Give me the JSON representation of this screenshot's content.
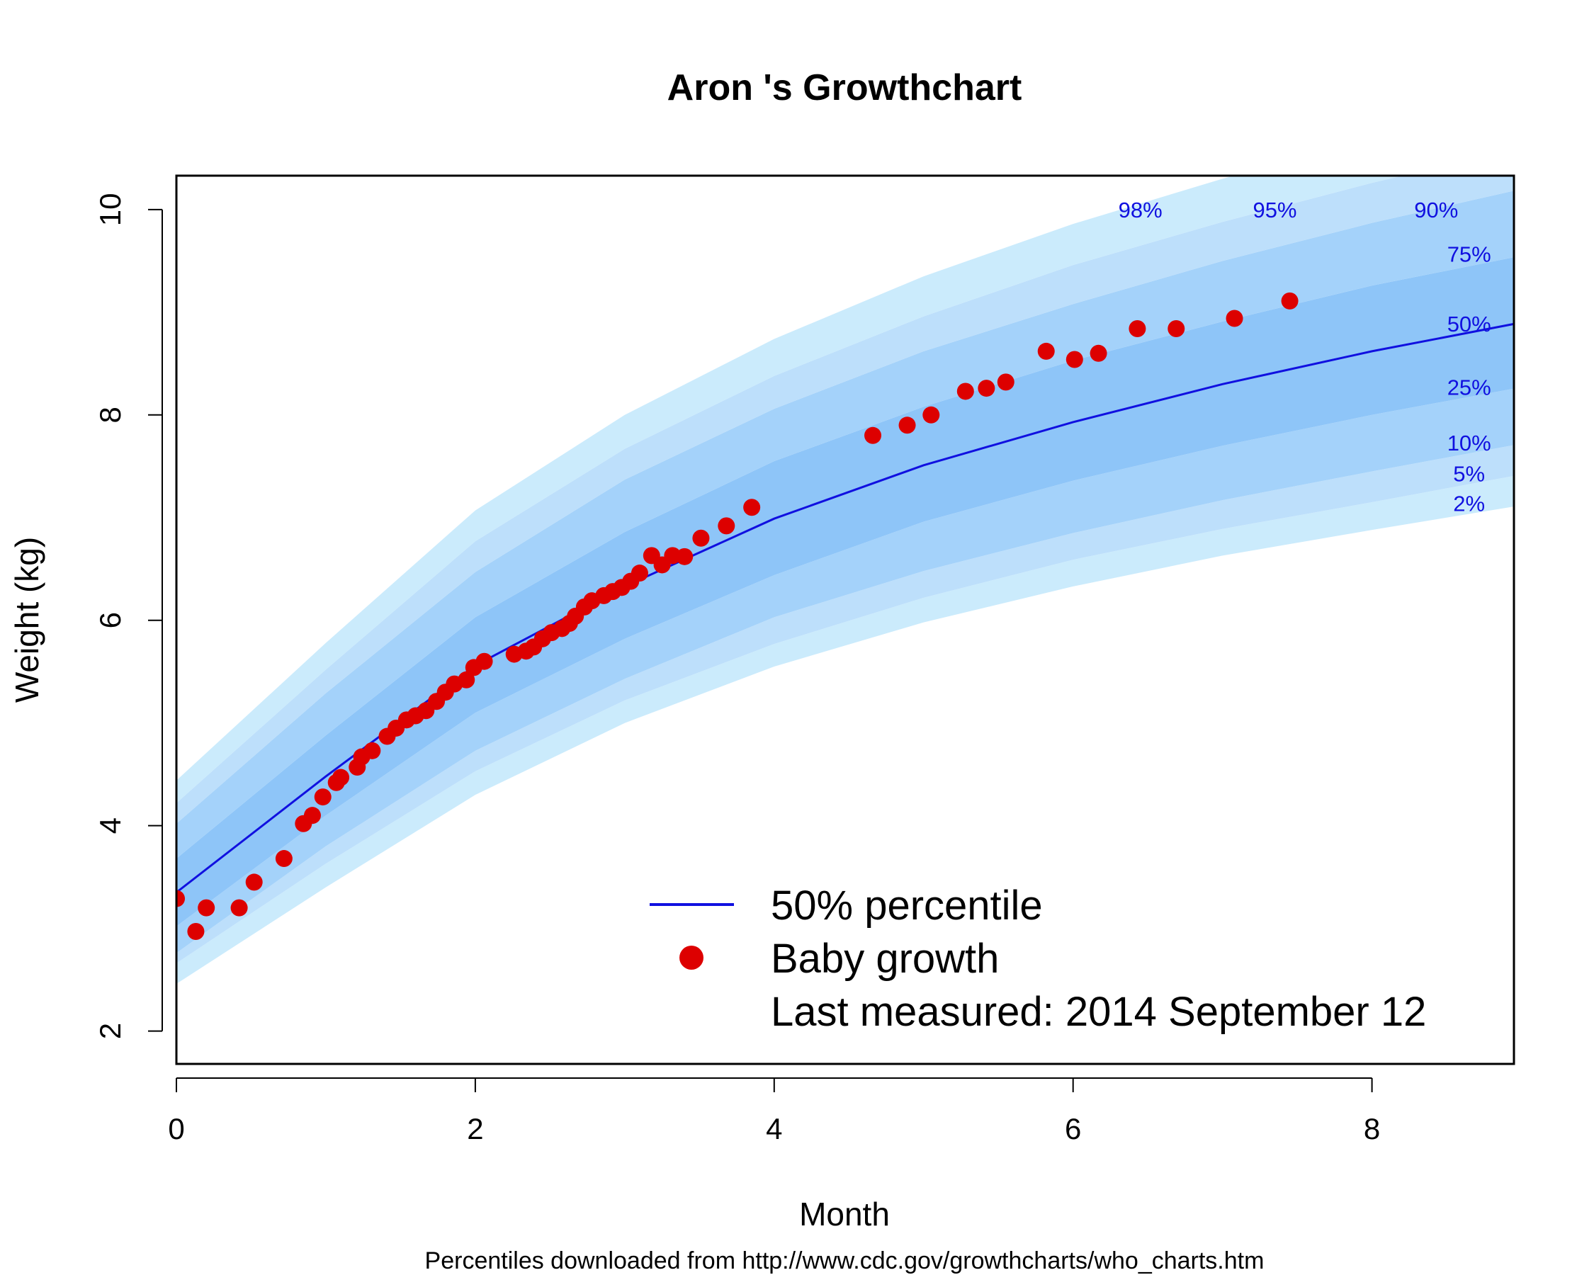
{
  "chart_data": {
    "type": "scatter",
    "title": "Aron 's Growthchart",
    "xlabel": "Month",
    "ylabel": "Weight (kg)",
    "caption": "Percentiles downloaded from http://www.cdc.gov/growthcharts/who_charts.htm",
    "xlim": [
      0,
      8.95
    ],
    "ylim": [
      1.68,
      10.33
    ],
    "x_ticks": [
      0,
      2,
      4,
      6,
      8
    ],
    "y_ticks": [
      2,
      4,
      6,
      8,
      10
    ],
    "grid": false,
    "legend_position": "bottom-right",
    "legend": {
      "line_label": "50% percentile",
      "points_label": "Baby growth",
      "note": "Last measured:  2014 September 12"
    },
    "percentile_months": [
      0,
      1,
      2,
      3,
      4,
      5,
      6,
      7,
      8,
      9
    ],
    "percentile_curves": [
      {
        "label": "2%",
        "values": [
          2.46,
          3.4,
          4.3,
          5.0,
          5.55,
          5.98,
          6.33,
          6.63,
          6.88,
          7.12
        ]
      },
      {
        "label": "5%",
        "values": [
          2.66,
          3.63,
          4.53,
          5.22,
          5.77,
          6.22,
          6.59,
          6.89,
          7.15,
          7.42
        ]
      },
      {
        "label": "10%",
        "values": [
          2.76,
          3.8,
          4.73,
          5.43,
          6.03,
          6.48,
          6.85,
          7.17,
          7.45,
          7.72
        ]
      },
      {
        "label": "25%",
        "values": [
          3.02,
          4.1,
          5.1,
          5.82,
          6.44,
          6.96,
          7.36,
          7.7,
          8.0,
          8.27
        ]
      },
      {
        "label": "50%",
        "values": [
          3.35,
          4.48,
          5.56,
          6.33,
          6.99,
          7.51,
          7.93,
          8.3,
          8.62,
          8.9
        ]
      },
      {
        "label": "75%",
        "values": [
          3.68,
          4.88,
          6.03,
          6.86,
          7.55,
          8.08,
          8.53,
          8.91,
          9.26,
          9.55
        ]
      },
      {
        "label": "90%",
        "values": [
          4.02,
          5.29,
          6.47,
          7.37,
          8.06,
          8.62,
          9.08,
          9.5,
          9.87,
          10.2
        ]
      },
      {
        "label": "95%",
        "values": [
          4.22,
          5.52,
          6.77,
          7.67,
          8.38,
          8.96,
          9.46,
          9.88,
          10.26,
          10.6
        ]
      },
      {
        "label": "98%",
        "values": [
          4.44,
          5.78,
          7.07,
          8.0,
          8.74,
          9.35,
          9.86,
          10.3,
          10.7,
          11.05
        ]
      }
    ],
    "band_colors": [
      "#cbebfc",
      "#bddffb",
      "#a4d2fa",
      "#8ec5f8",
      "#8ec5f8",
      "#a4d2fa",
      "#bddffb",
      "#cbebfc"
    ],
    "median_line_color": "#1010e0",
    "point_color": "#dd0000",
    "baby_growth": {
      "x": [
        0.0,
        0.13,
        0.2,
        0.42,
        0.52,
        0.72,
        0.85,
        0.91,
        0.98,
        1.07,
        1.1,
        1.21,
        1.24,
        1.31,
        1.41,
        1.47,
        1.54,
        1.6,
        1.67,
        1.74,
        1.8,
        1.86,
        1.94,
        1.99,
        2.06,
        2.26,
        2.34,
        2.39,
        2.45,
        2.51,
        2.58,
        2.63,
        2.67,
        2.73,
        2.78,
        2.86,
        2.92,
        2.98,
        3.04,
        3.1,
        3.18,
        3.25,
        3.32,
        3.4,
        3.51,
        3.68,
        3.85,
        4.66,
        4.89,
        5.05,
        5.28,
        5.42,
        5.55,
        5.82,
        6.01,
        6.17,
        6.43,
        6.69,
        7.08,
        7.45
      ],
      "y": [
        3.29,
        2.97,
        3.2,
        3.2,
        3.45,
        3.68,
        4.02,
        4.1,
        4.28,
        4.42,
        4.47,
        4.57,
        4.67,
        4.73,
        4.87,
        4.95,
        5.03,
        5.07,
        5.12,
        5.21,
        5.3,
        5.38,
        5.42,
        5.54,
        5.6,
        5.67,
        5.7,
        5.74,
        5.82,
        5.88,
        5.92,
        5.97,
        6.04,
        6.13,
        6.19,
        6.24,
        6.28,
        6.32,
        6.38,
        6.46,
        6.63,
        6.54,
        6.63,
        6.62,
        6.8,
        6.92,
        7.1,
        7.8,
        7.9,
        8.0,
        8.23,
        8.26,
        8.32,
        8.62,
        8.54,
        8.6,
        8.84,
        8.84,
        8.94,
        9.11
      ]
    }
  }
}
